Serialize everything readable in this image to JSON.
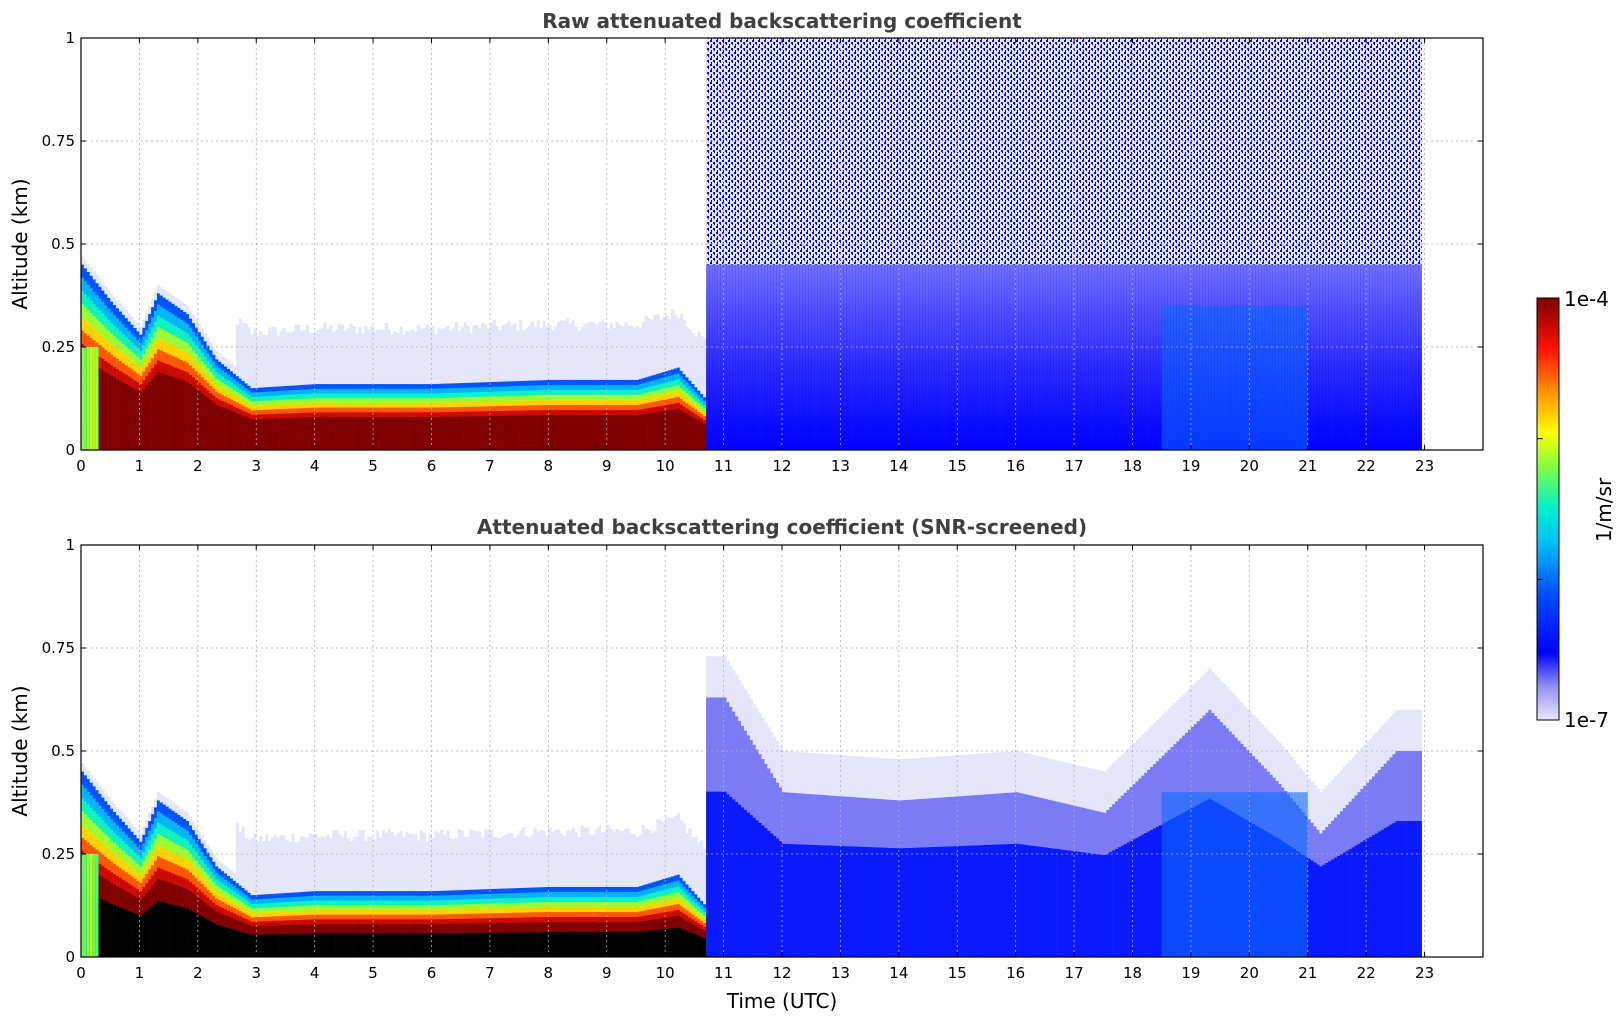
{
  "chart_data": [
    {
      "type": "heatmap",
      "title": "Raw attenuated backscattering coefficient",
      "xlabel": "",
      "ylabel": "Altitude (km)",
      "xlim": [
        0,
        24
      ],
      "ylim": [
        0,
        1
      ],
      "x_ticks": [
        "0",
        "1",
        "2",
        "3",
        "4",
        "5",
        "6",
        "7",
        "8",
        "9",
        "10",
        "11",
        "12",
        "13",
        "14",
        "15",
        "16",
        "17",
        "18",
        "19",
        "20",
        "21",
        "22",
        "23"
      ],
      "y_ticks": [
        "0",
        "0.25",
        "0.5",
        "0.75",
        "1"
      ],
      "grid": true,
      "data_extent_hours": [
        0,
        22.95
      ],
      "features": {
        "surface_layer_top_km": [
          {
            "t": 0.0,
            "z": 0.45
          },
          {
            "t": 0.5,
            "z": 0.36
          },
          {
            "t": 1.0,
            "z": 0.28
          },
          {
            "t": 1.3,
            "z": 0.38
          },
          {
            "t": 1.8,
            "z": 0.33
          },
          {
            "t": 2.3,
            "z": 0.22
          },
          {
            "t": 2.9,
            "z": 0.15
          },
          {
            "t": 4.0,
            "z": 0.16
          },
          {
            "t": 6.0,
            "z": 0.16
          },
          {
            "t": 8.0,
            "z": 0.17
          },
          {
            "t": 9.5,
            "z": 0.17
          },
          {
            "t": 10.2,
            "z": 0.2
          },
          {
            "t": 10.7,
            "z": 0.12
          }
        ],
        "noisy_region_start_hours": 10.7
      }
    },
    {
      "type": "heatmap",
      "title": "Attenuated backscattering coefficient (SNR-screened)",
      "xlabel": "Time (UTC)",
      "ylabel": "Altitude (km)",
      "xlim": [
        0,
        24
      ],
      "ylim": [
        0,
        1
      ],
      "x_ticks": [
        "0",
        "1",
        "2",
        "3",
        "4",
        "5",
        "6",
        "7",
        "8",
        "9",
        "10",
        "11",
        "12",
        "13",
        "14",
        "15",
        "16",
        "17",
        "18",
        "19",
        "20",
        "21",
        "22",
        "23"
      ],
      "y_ticks": [
        "0",
        "0.25",
        "0.5",
        "0.75",
        "1"
      ],
      "grid": true,
      "data_extent_hours": [
        0,
        22.95
      ],
      "features": {
        "mixing_layer_top_km": [
          {
            "t": 11.0,
            "z": 0.73
          },
          {
            "t": 12.0,
            "z": 0.5
          },
          {
            "t": 14.0,
            "z": 0.48
          },
          {
            "t": 16.0,
            "z": 0.5
          },
          {
            "t": 17.5,
            "z": 0.45
          },
          {
            "t": 19.3,
            "z": 0.7
          },
          {
            "t": 20.5,
            "z": 0.52
          },
          {
            "t": 21.2,
            "z": 0.4
          },
          {
            "t": 22.5,
            "z": 0.6
          }
        ]
      }
    }
  ],
  "colorbar": {
    "label": "1/m/sr",
    "max_label": "1e-4",
    "min_label": "1e-7",
    "scale": "log",
    "colormap": "jet",
    "stops": [
      "#e6e6fa",
      "#0000ff",
      "#00bfff",
      "#00ffcc",
      "#7fff00",
      "#ffff00",
      "#ff7f00",
      "#ff0000",
      "#800000"
    ]
  }
}
